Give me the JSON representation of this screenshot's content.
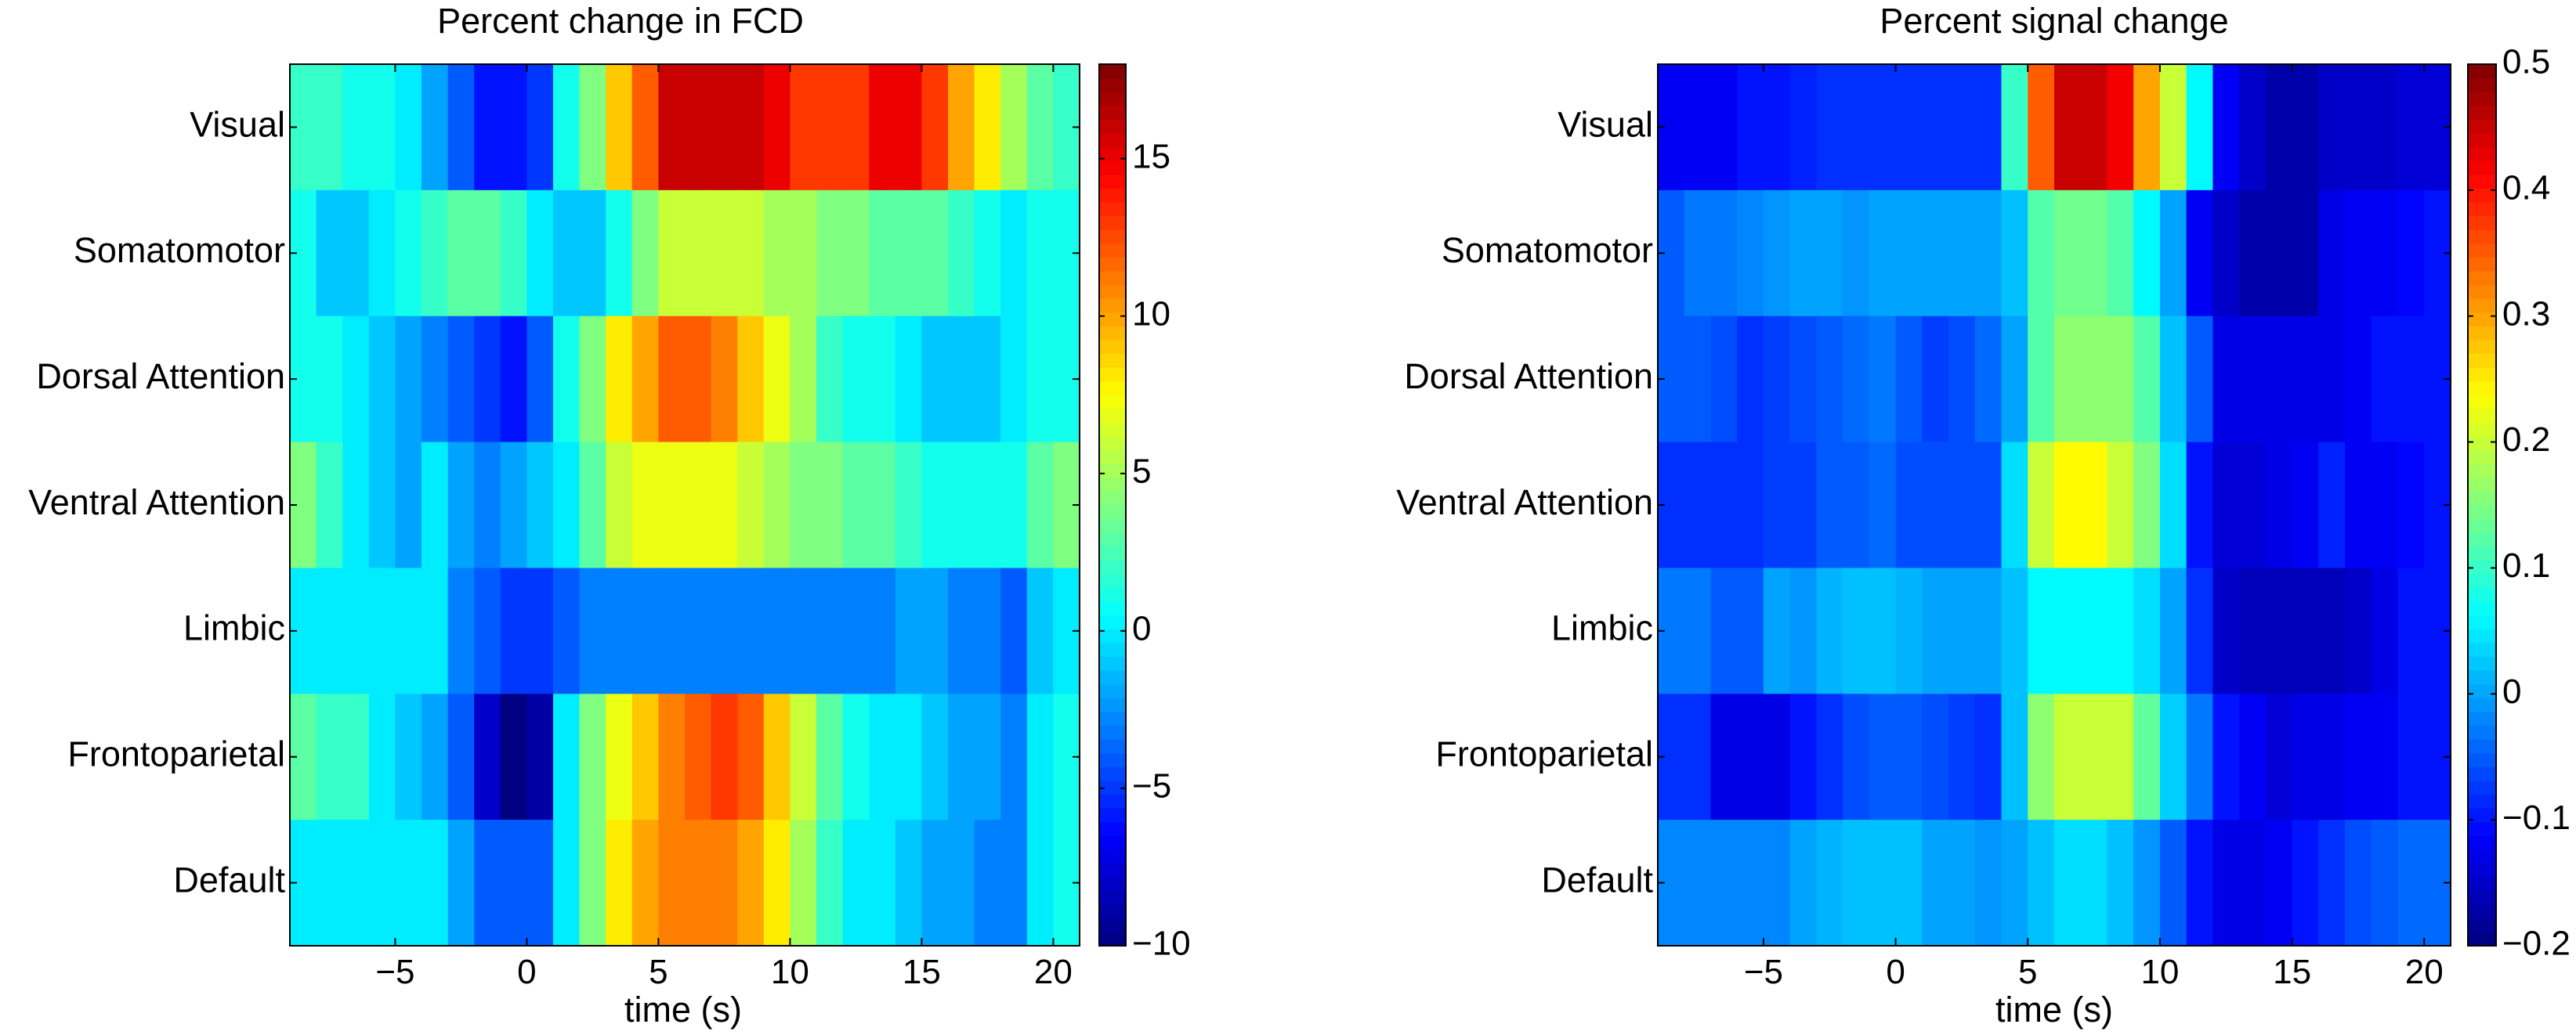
{
  "chart_data": [
    {
      "type": "heatmap",
      "title": "Percent change in FCD",
      "xlabel": "time (s)",
      "ylabel": "",
      "x_start": -9,
      "x_step": 1,
      "n_cols": 30,
      "xlim": [
        -9,
        21
      ],
      "xticks": [
        -5,
        0,
        5,
        10,
        15,
        20
      ],
      "xtick_labels": [
        "−5",
        "0",
        "5",
        "10",
        "15",
        "20"
      ],
      "rows": [
        "Visual",
        "Somatomotor",
        "Dorsal Attention",
        "Ventral Attention",
        "Limbic",
        "Frontoparietal",
        "Default"
      ],
      "clim": [
        -10,
        18
      ],
      "colorbar_ticks": [
        -10,
        -5,
        0,
        5,
        10,
        15
      ],
      "colorbar_labels": [
        "−10",
        "−5",
        "0",
        "5",
        "10",
        "15"
      ],
      "colormap": "jet",
      "values": [
        [
          2,
          2,
          1,
          1,
          0,
          -2,
          -4,
          -6,
          -6,
          -5,
          1,
          4,
          9,
          12,
          16,
          16,
          16,
          16,
          15,
          13,
          13,
          13,
          15,
          15,
          13,
          10,
          8,
          5,
          3,
          2
        ],
        [
          1,
          -1,
          -1,
          0,
          1,
          2,
          3,
          3,
          2,
          0,
          -1,
          -1,
          1,
          4,
          6,
          6,
          6,
          6,
          5,
          5,
          4,
          4,
          3,
          3,
          3,
          2,
          1,
          0,
          1,
          1
        ],
        [
          1,
          1,
          0,
          -1,
          -2,
          -3,
          -4,
          -5,
          -6,
          -4,
          1,
          4,
          8,
          10,
          12,
          12,
          11,
          9,
          7,
          5,
          2,
          1,
          1,
          0,
          -1,
          -1,
          -1,
          0,
          1,
          1
        ],
        [
          4,
          2,
          0,
          -1,
          -2,
          0,
          -2,
          -3,
          -2,
          -1,
          0,
          3,
          6,
          7,
          7,
          7,
          7,
          6,
          5,
          4,
          4,
          3,
          3,
          2,
          1,
          1,
          1,
          1,
          3,
          4
        ],
        [
          0,
          0,
          0,
          0,
          0,
          0,
          -3,
          -4,
          -5,
          -5,
          -4,
          -3,
          -3,
          -3,
          -3,
          -3,
          -3,
          -3,
          -3,
          -3,
          -3,
          -3,
          -3,
          -2,
          -2,
          -3,
          -3,
          -4,
          -1,
          0
        ],
        [
          3,
          2,
          2,
          0,
          -1,
          -2,
          -4,
          -8,
          -10,
          -9,
          0,
          4,
          7,
          9,
          11,
          12,
          13,
          12,
          9,
          6,
          3,
          1,
          0,
          0,
          -1,
          -2,
          -2,
          -3,
          0,
          1
        ],
        [
          0,
          0,
          0,
          0,
          0,
          0,
          -2,
          -4,
          -4,
          -4,
          0,
          4,
          8,
          10,
          11,
          11,
          11,
          10,
          8,
          5,
          2,
          0,
          0,
          -1,
          -2,
          -2,
          -3,
          -3,
          0,
          1
        ]
      ]
    },
    {
      "type": "heatmap",
      "title": "Percent signal change",
      "xlabel": "time (s)",
      "ylabel": "",
      "x_start": -9,
      "x_step": 1,
      "n_cols": 30,
      "xlim": [
        -9,
        21
      ],
      "xticks": [
        -5,
        0,
        5,
        10,
        15,
        20
      ],
      "xtick_labels": [
        "−5",
        "0",
        "5",
        "10",
        "15",
        "20"
      ],
      "rows": [
        "Visual",
        "Somatomotor",
        "Dorsal Attention",
        "Ventral Attention",
        "Limbic",
        "Frontoparietal",
        "Default"
      ],
      "clim": [
        -0.2,
        0.5
      ],
      "colorbar_ticks": [
        -0.2,
        -0.1,
        0,
        0.1,
        0.2,
        0.3,
        0.4,
        0.5
      ],
      "colorbar_labels": [
        "−0.2",
        "−0.1",
        "0",
        "0.1",
        "0.2",
        "0.3",
        "0.4",
        "0.5"
      ],
      "colormap": "jet",
      "values": [
        [
          -0.12,
          -0.12,
          -0.12,
          -0.1,
          -0.1,
          -0.09,
          -0.08,
          -0.08,
          -0.08,
          -0.08,
          -0.08,
          -0.08,
          -0.08,
          0.1,
          0.35,
          0.45,
          0.45,
          0.42,
          0.3,
          0.2,
          0.06,
          -0.12,
          -0.15,
          -0.17,
          -0.17,
          -0.15,
          -0.15,
          -0.15,
          -0.14,
          -0.14
        ],
        [
          -0.05,
          -0.03,
          -0.03,
          -0.02,
          -0.01,
          0.0,
          0.0,
          -0.01,
          0.0,
          0.0,
          0.0,
          0.0,
          0.0,
          0.02,
          0.12,
          0.14,
          0.14,
          0.12,
          0.06,
          0.0,
          -0.12,
          -0.15,
          -0.17,
          -0.17,
          -0.17,
          -0.13,
          -0.12,
          -0.12,
          -0.11,
          -0.1
        ],
        [
          -0.05,
          -0.05,
          -0.06,
          -0.08,
          -0.07,
          -0.06,
          -0.05,
          -0.04,
          -0.03,
          -0.05,
          -0.07,
          -0.06,
          -0.04,
          0.0,
          0.12,
          0.16,
          0.16,
          0.16,
          0.12,
          0.02,
          -0.05,
          -0.13,
          -0.13,
          -0.13,
          -0.13,
          -0.13,
          -0.12,
          -0.1,
          -0.1,
          -0.1
        ],
        [
          -0.08,
          -0.08,
          -0.08,
          -0.08,
          -0.07,
          -0.07,
          -0.05,
          -0.05,
          -0.04,
          -0.06,
          -0.06,
          -0.06,
          -0.06,
          0.04,
          0.2,
          0.24,
          0.24,
          0.2,
          0.15,
          0.04,
          -0.1,
          -0.14,
          -0.14,
          -0.13,
          -0.12,
          -0.09,
          -0.12,
          -0.12,
          -0.11,
          -0.1
        ],
        [
          -0.03,
          -0.03,
          -0.05,
          -0.05,
          0.0,
          -0.01,
          0.01,
          0.02,
          0.02,
          0.01,
          0.0,
          0.0,
          0.0,
          0.02,
          0.06,
          0.06,
          0.06,
          0.06,
          0.04,
          0.0,
          -0.08,
          -0.15,
          -0.16,
          -0.16,
          -0.16,
          -0.16,
          -0.15,
          -0.13,
          -0.1,
          -0.1
        ],
        [
          -0.08,
          -0.08,
          -0.13,
          -0.13,
          -0.13,
          -0.1,
          -0.08,
          -0.06,
          -0.05,
          -0.05,
          -0.06,
          -0.07,
          -0.08,
          0.02,
          0.16,
          0.2,
          0.2,
          0.2,
          0.13,
          0.03,
          -0.03,
          -0.1,
          -0.12,
          -0.14,
          -0.13,
          -0.13,
          -0.12,
          -0.12,
          -0.1,
          -0.1
        ],
        [
          -0.02,
          -0.02,
          -0.02,
          -0.02,
          -0.02,
          0.0,
          0.01,
          0.02,
          0.02,
          0.02,
          0.0,
          0.0,
          -0.01,
          0.0,
          0.02,
          0.04,
          0.04,
          0.02,
          -0.01,
          -0.05,
          -0.1,
          -0.13,
          -0.13,
          -0.12,
          -0.1,
          -0.08,
          -0.06,
          -0.05,
          -0.04,
          -0.04
        ]
      ]
    }
  ]
}
